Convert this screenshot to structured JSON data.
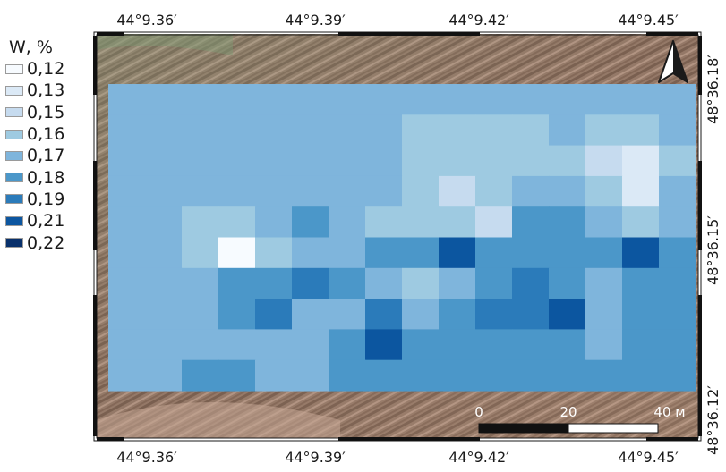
{
  "legend": {
    "title": "W, %",
    "items": [
      {
        "label": "0,12",
        "color": "#f7fbff"
      },
      {
        "label": "0,13",
        "color": "#dbe9f6"
      },
      {
        "label": "0,15",
        "color": "#c6dbef"
      },
      {
        "label": "0,16",
        "color": "#9ecae1"
      },
      {
        "label": "0,17",
        "color": "#7fb5dc"
      },
      {
        "label": "0,18",
        "color": "#4b97c9"
      },
      {
        "label": "0,19",
        "color": "#2b7bba"
      },
      {
        "label": "0,21",
        "color": "#0c56a0"
      },
      {
        "label": "0,22",
        "color": "#08306b"
      }
    ]
  },
  "frame": {
    "top_labels": [
      "44°9.36′",
      "44°9.39′",
      "44°9.42′",
      "44°9.45′"
    ],
    "bottom_labels": [
      "44°9.36′",
      "44°9.39′",
      "44°9.42′",
      "44°9.45′"
    ],
    "right_labels": [
      "48°36.18′",
      "48°36.15′",
      "48°36.12′"
    ]
  },
  "north_arrow": {
    "icon": "north-arrow-icon"
  },
  "scale_bar": {
    "labels": [
      "0",
      "20",
      "40 м"
    ]
  },
  "raster": {
    "description_unit": "legend class index 0–8 (0 = 0,12 … 8 = 0,22)",
    "cells": [
      [
        4,
        4,
        4,
        4,
        4,
        4,
        4,
        4,
        4,
        4,
        4,
        4,
        4,
        4,
        4,
        4
      ],
      [
        4,
        4,
        4,
        4,
        4,
        4,
        4,
        4,
        3,
        3,
        3,
        3,
        4,
        3,
        3,
        4
      ],
      [
        4,
        4,
        4,
        4,
        4,
        4,
        4,
        4,
        3,
        3,
        3,
        3,
        3,
        2,
        1,
        3
      ],
      [
        4,
        4,
        4,
        4,
        4,
        4,
        4,
        4,
        3,
        2,
        3,
        4,
        4,
        3,
        1,
        4
      ],
      [
        4,
        4,
        3,
        3,
        4,
        5,
        4,
        3,
        3,
        3,
        2,
        5,
        5,
        4,
        3,
        4
      ],
      [
        4,
        4,
        3,
        0,
        3,
        4,
        4,
        5,
        5,
        7,
        5,
        5,
        5,
        5,
        7,
        5
      ],
      [
        4,
        4,
        4,
        5,
        5,
        6,
        5,
        4,
        3,
        4,
        5,
        6,
        5,
        4,
        5,
        5
      ],
      [
        4,
        4,
        4,
        5,
        6,
        4,
        4,
        6,
        4,
        5,
        6,
        6,
        7,
        4,
        5,
        5
      ],
      [
        4,
        4,
        4,
        4,
        4,
        4,
        5,
        7,
        5,
        5,
        5,
        5,
        5,
        4,
        5,
        5
      ],
      [
        4,
        4,
        5,
        5,
        4,
        4,
        5,
        5,
        5,
        5,
        5,
        5,
        5,
        5,
        5,
        5
      ]
    ]
  }
}
